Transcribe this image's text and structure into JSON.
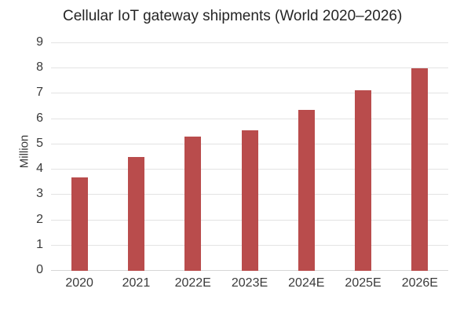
{
  "chart_data": {
    "type": "bar",
    "title": "Cellular IoT gateway shipments (World 2020–2026)",
    "categories": [
      "2020",
      "2021",
      "2022E",
      "2023E",
      "2024E",
      "2025E",
      "2026E"
    ],
    "values": [
      3.7,
      4.5,
      5.3,
      5.55,
      6.35,
      7.15,
      8.0
    ],
    "xlabel": "",
    "ylabel": "Million",
    "ylim": [
      0,
      9
    ],
    "ytick_step": 1,
    "yticks": [
      0,
      1,
      2,
      3,
      4,
      5,
      6,
      7,
      8,
      9
    ],
    "grid": "horizontal",
    "legend_position": "none",
    "bar_color": "#b94c4c"
  },
  "colors": {
    "bar": "#b94c4c",
    "gridline": "#e3e3e3",
    "axis_line": "#d6d6d6",
    "title_text": "#252525",
    "tick_text": "#3a3a3a",
    "background": "#ffffff"
  }
}
